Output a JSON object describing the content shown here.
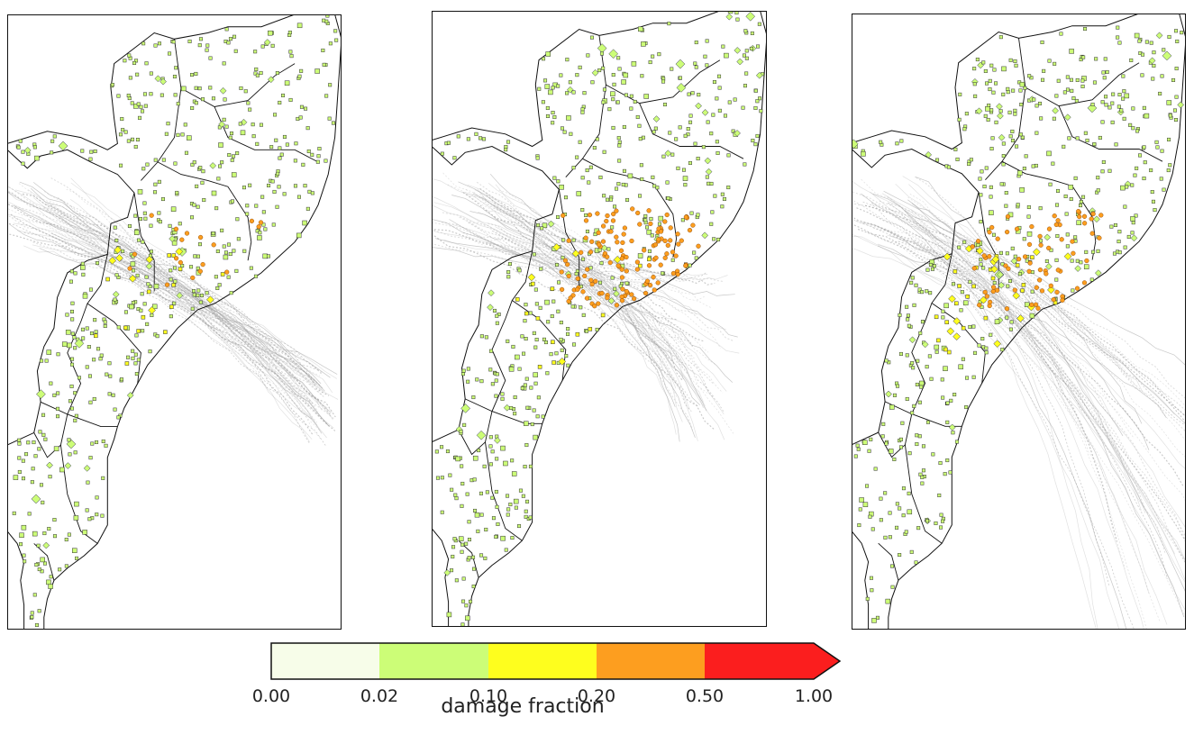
{
  "colors": {
    "bins": [
      "#f7fde9",
      "#ccfd77",
      "#fefe1e",
      "#fd9e1f",
      "#fb1e1e"
    ],
    "track": "#9a9a9a",
    "border": "#111111"
  },
  "colorbar": {
    "title": "damage fraction",
    "ticks": [
      "0.00",
      "0.02",
      "0.10",
      "0.20",
      "0.50",
      "1.00"
    ],
    "bins": [
      [
        0.0,
        0.02
      ],
      [
        0.02,
        0.1
      ],
      [
        0.1,
        0.2
      ],
      [
        0.2,
        0.5
      ],
      [
        0.5,
        1.0
      ]
    ],
    "extend": "max"
  },
  "panels": [
    {
      "name": "left",
      "storm_spread": "narrow-southeast",
      "damage_level": "low"
    },
    {
      "name": "center",
      "storm_spread": "clustered-coast",
      "damage_level": "high"
    },
    {
      "name": "right",
      "storm_spread": "wide-southeast",
      "damage_level": "medium"
    }
  ]
}
